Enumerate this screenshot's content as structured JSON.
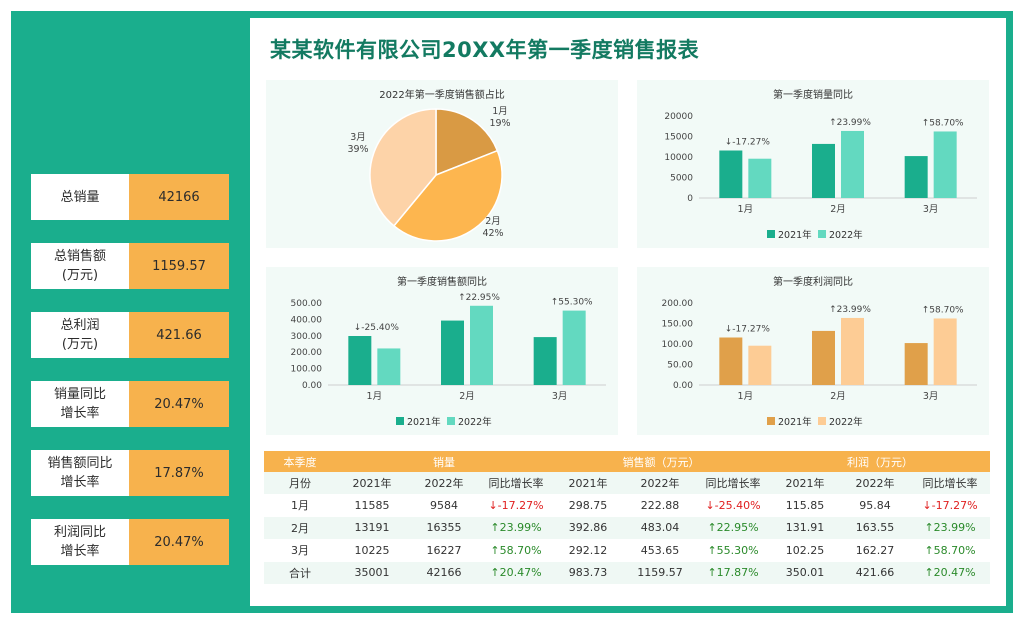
{
  "title": "某某软件有限公司20XX年第一季度销售报表",
  "colors": {
    "brand_green": "#1aae8d",
    "orange": "#f7b24d",
    "series_2021_green": "#1aae8d",
    "series_2022_green": "#63d9c0",
    "series_2021_orange": "#e0a04a",
    "series_2022_orange": "#fdcc95",
    "pie_jan": "#d99a44",
    "pie_feb": "#fdb64f",
    "pie_mar": "#fdd3a8",
    "negative": "#e02020",
    "positive": "#2a8a2a"
  },
  "kpis": [
    {
      "label": "总销量",
      "value": "42166"
    },
    {
      "label": "总销售额\n(万元)",
      "value": "1159.57"
    },
    {
      "label": "总利润\n(万元)",
      "value": "421.66"
    },
    {
      "label": "销量同比\n增长率",
      "value": "20.47%"
    },
    {
      "label": "销售额同比\n增长率",
      "value": "17.87%"
    },
    {
      "label": "利润同比\n增长率",
      "value": "20.47%"
    }
  ],
  "chart_data": [
    {
      "type": "pie",
      "title": "2022年第一季度销售额占比",
      "categories": [
        "1月",
        "2月",
        "3月"
      ],
      "values": [
        19,
        42,
        39
      ],
      "labels": [
        "1月\n19%",
        "2月\n42%",
        "3月\n39%"
      ]
    },
    {
      "type": "bar",
      "title": "第一季度销量同比",
      "categories": [
        "1月",
        "2月",
        "3月"
      ],
      "series": [
        {
          "name": "2021年",
          "values": [
            11585,
            13191,
            10225
          ]
        },
        {
          "name": "2022年",
          "values": [
            9584,
            16355,
            16227
          ]
        }
      ],
      "annotations": [
        "↓-17.27%",
        "↑23.99%",
        "↑58.70%"
      ],
      "ylim": [
        0,
        20000
      ],
      "yticks": [
        "0",
        "5000",
        "10000",
        "15000",
        "20000"
      ],
      "legend": "bottom"
    },
    {
      "type": "bar",
      "title": "第一季度销售额同比",
      "categories": [
        "1月",
        "2月",
        "3月"
      ],
      "series": [
        {
          "name": "2021年",
          "values": [
            298.75,
            392.86,
            292.12
          ]
        },
        {
          "name": "2022年",
          "values": [
            222.88,
            483.04,
            453.65
          ]
        }
      ],
      "annotations": [
        "↓-25.40%",
        "↑22.95%",
        "↑55.30%"
      ],
      "ylim": [
        0,
        500
      ],
      "yticks": [
        "0.00",
        "100.00",
        "200.00",
        "300.00",
        "400.00",
        "500.00"
      ],
      "legend": "bottom"
    },
    {
      "type": "bar",
      "title": "第一季度利润同比",
      "categories": [
        "1月",
        "2月",
        "3月"
      ],
      "series": [
        {
          "name": "2021年",
          "values": [
            115.85,
            131.91,
            102.25
          ]
        },
        {
          "name": "2022年",
          "values": [
            95.84,
            163.55,
            162.27
          ]
        }
      ],
      "annotations": [
        "↓-17.27%",
        "↑23.99%",
        "↑58.70%"
      ],
      "ylim": [
        0,
        200
      ],
      "yticks": [
        "0.00",
        "50.00",
        "100.00",
        "150.00",
        "200.00"
      ],
      "legend": "bottom"
    },
    {
      "type": "table",
      "group_headers": [
        "本季度",
        "销量",
        "销售额（万元）",
        "利润（万元）"
      ],
      "columns": [
        "月份",
        "2021年",
        "2022年",
        "同比增长率",
        "2021年",
        "2022年",
        "同比增长率",
        "2021年",
        "2022年",
        "同比增长率"
      ],
      "rows": [
        [
          "1月",
          "11585",
          "9584",
          "↓-17.27%",
          "298.75",
          "222.88",
          "↓-25.40%",
          "115.85",
          "95.84",
          "↓-17.27%"
        ],
        [
          "2月",
          "13191",
          "16355",
          "↑23.99%",
          "392.86",
          "483.04",
          "↑22.95%",
          "131.91",
          "163.55",
          "↑23.99%"
        ],
        [
          "3月",
          "10225",
          "16227",
          "↑58.70%",
          "292.12",
          "453.65",
          "↑55.30%",
          "102.25",
          "162.27",
          "↑58.70%"
        ],
        [
          "合计",
          "35001",
          "42166",
          "↑20.47%",
          "983.73",
          "1159.57",
          "↑17.87%",
          "350.01",
          "421.66",
          "↑20.47%"
        ]
      ]
    }
  ]
}
